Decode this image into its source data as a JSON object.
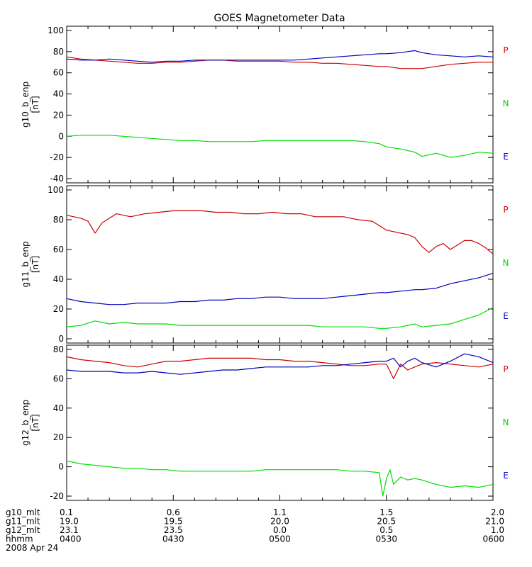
{
  "chart_data": {
    "type": "line",
    "title": "GOES Magnetometer Data",
    "x_time_labels": {
      "rows": [
        {
          "name": "g10_mlt",
          "values": [
            "0.1",
            "0.6",
            "1.1",
            "1.5",
            "2.0"
          ]
        },
        {
          "name": "g11_mlt",
          "values": [
            "19.0",
            "19.5",
            "20.0",
            "20.5",
            "21.0"
          ]
        },
        {
          "name": "g12_mlt",
          "values": [
            "23.1",
            "23.5",
            "0.0",
            "0.5",
            "1.0"
          ]
        },
        {
          "name": "hhmm",
          "values": [
            "0400",
            "0430",
            "0500",
            "0530",
            "0600"
          ]
        }
      ],
      "date": "2008 Apr 24"
    },
    "x_range_minutes": [
      0,
      120
    ],
    "legend": [
      {
        "label": "P",
        "color": "#cc0000"
      },
      {
        "label": "N",
        "color": "#00dd00"
      },
      {
        "label": "E",
        "color": "#0000bb"
      }
    ],
    "panels": [
      {
        "ylabel": "g10_b_enp",
        "unit": "[nT]",
        "ylim": [
          -40,
          100
        ],
        "yticks": [
          -40,
          -20,
          0,
          20,
          40,
          60,
          80,
          100
        ],
        "series": [
          {
            "name": "P",
            "color": "#cc0000",
            "x": [
              0,
              4,
              8,
              12,
              16,
              20,
              24,
              28,
              32,
              36,
              40,
              44,
              48,
              52,
              56,
              60,
              64,
              68,
              72,
              76,
              80,
              84,
              88,
              90,
              94,
              98,
              100,
              104,
              108,
              112,
              116,
              120
            ],
            "values": [
              75,
              73,
              72,
              71,
              70,
              69,
              69,
              70,
              70,
              71,
              72,
              72,
              71,
              71,
              71,
              71,
              70,
              70,
              69,
              69,
              68,
              67,
              66,
              66,
              64,
              64,
              64,
              66,
              68,
              69,
              70,
              70
            ]
          },
          {
            "name": "E",
            "color": "#0000bb",
            "x": [
              0,
              4,
              8,
              12,
              16,
              20,
              24,
              28,
              32,
              36,
              40,
              44,
              48,
              52,
              56,
              60,
              64,
              68,
              72,
              76,
              80,
              84,
              88,
              90,
              94,
              98,
              100,
              104,
              108,
              112,
              116,
              120
            ],
            "values": [
              73,
              72,
              72,
              73,
              72,
              71,
              70,
              71,
              71,
              72,
              72,
              72,
              72,
              72,
              72,
              72,
              72,
              73,
              74,
              75,
              76,
              77,
              78,
              78,
              79,
              81,
              79,
              77,
              76,
              75,
              76,
              75
            ]
          },
          {
            "name": "N",
            "color": "#00dd00",
            "x": [
              0,
              4,
              8,
              12,
              16,
              20,
              24,
              28,
              32,
              36,
              40,
              44,
              48,
              52,
              56,
              60,
              64,
              68,
              72,
              76,
              80,
              84,
              88,
              90,
              94,
              98,
              100,
              104,
              108,
              112,
              116,
              120
            ],
            "values": [
              0,
              1,
              1,
              1,
              0,
              -1,
              -2,
              -3,
              -4,
              -4,
              -5,
              -5,
              -5,
              -5,
              -4,
              -4,
              -4,
              -4,
              -4,
              -4,
              -4,
              -5,
              -7,
              -10,
              -12,
              -15,
              -19,
              -16,
              -20,
              -18,
              -15,
              -16
            ]
          }
        ]
      },
      {
        "ylabel": "g11_b_enp",
        "unit": "[nT]",
        "ylim": [
          0,
          100
        ],
        "yticks": [
          0,
          20,
          40,
          60,
          80,
          100
        ],
        "series": [
          {
            "name": "P",
            "color": "#cc0000",
            "x": [
              0,
              2,
              4,
              6,
              8,
              10,
              14,
              18,
              22,
              26,
              30,
              34,
              38,
              42,
              46,
              50,
              54,
              58,
              62,
              66,
              70,
              74,
              78,
              82,
              86,
              88,
              90,
              92,
              94,
              96,
              98,
              100,
              102,
              104,
              106,
              108,
              110,
              112,
              114,
              116,
              118,
              120
            ],
            "values": [
              83,
              82,
              81,
              79,
              71,
              78,
              84,
              82,
              84,
              85,
              86,
              86,
              86,
              85,
              85,
              84,
              84,
              85,
              84,
              84,
              82,
              82,
              82,
              80,
              79,
              76,
              73,
              72,
              71,
              70,
              68,
              62,
              58,
              62,
              64,
              60,
              63,
              66,
              66,
              64,
              61,
              57
            ]
          },
          {
            "name": "E",
            "color": "#0000bb",
            "x": [
              0,
              4,
              8,
              12,
              16,
              20,
              24,
              28,
              32,
              36,
              40,
              44,
              48,
              52,
              56,
              60,
              64,
              68,
              72,
              76,
              80,
              84,
              88,
              90,
              94,
              98,
              100,
              104,
              108,
              112,
              116,
              120
            ],
            "values": [
              27,
              25,
              24,
              23,
              23,
              24,
              24,
              24,
              25,
              25,
              26,
              26,
              27,
              27,
              28,
              28,
              27,
              27,
              27,
              28,
              29,
              30,
              31,
              31,
              32,
              33,
              33,
              34,
              37,
              39,
              41,
              44
            ]
          },
          {
            "name": "N",
            "color": "#00dd00",
            "x": [
              0,
              4,
              8,
              12,
              16,
              20,
              24,
              28,
              32,
              36,
              40,
              44,
              48,
              52,
              56,
              60,
              64,
              68,
              72,
              76,
              80,
              84,
              88,
              90,
              94,
              98,
              100,
              104,
              108,
              112,
              116,
              120
            ],
            "values": [
              8,
              9,
              12,
              10,
              11,
              10,
              10,
              10,
              9,
              9,
              9,
              9,
              9,
              9,
              9,
              9,
              9,
              9,
              8,
              8,
              8,
              8,
              7,
              7,
              8,
              10,
              8,
              9,
              10,
              13,
              16,
              21
            ]
          }
        ]
      },
      {
        "ylabel": "g12_b_enp",
        "unit": "[nT]",
        "ylim": [
          -20,
          80
        ],
        "yticks": [
          -20,
          0,
          20,
          40,
          60,
          80
        ],
        "series": [
          {
            "name": "P",
            "color": "#cc0000",
            "x": [
              0,
              4,
              8,
              12,
              16,
              20,
              24,
              28,
              32,
              36,
              40,
              44,
              48,
              52,
              56,
              60,
              64,
              68,
              72,
              76,
              80,
              84,
              88,
              90,
              92,
              94,
              96,
              98,
              100,
              104,
              108,
              112,
              116,
              120
            ],
            "values": [
              75,
              73,
              72,
              71,
              69,
              68,
              70,
              72,
              72,
              73,
              74,
              74,
              74,
              74,
              73,
              73,
              72,
              72,
              71,
              70,
              69,
              69,
              70,
              70,
              60,
              70,
              66,
              68,
              70,
              71,
              70,
              69,
              68,
              70
            ]
          },
          {
            "name": "E",
            "color": "#0000bb",
            "x": [
              0,
              4,
              8,
              12,
              16,
              20,
              24,
              28,
              32,
              36,
              40,
              44,
              48,
              52,
              56,
              60,
              64,
              68,
              72,
              76,
              80,
              84,
              88,
              90,
              92,
              94,
              96,
              98,
              100,
              104,
              108,
              112,
              116,
              120
            ],
            "values": [
              66,
              65,
              65,
              65,
              64,
              64,
              65,
              64,
              63,
              64,
              65,
              66,
              66,
              67,
              68,
              68,
              68,
              68,
              69,
              69,
              70,
              71,
              72,
              72,
              74,
              68,
              72,
              74,
              71,
              68,
              72,
              77,
              75,
              71
            ]
          },
          {
            "name": "N",
            "color": "#00dd00",
            "x": [
              0,
              4,
              8,
              12,
              16,
              20,
              24,
              28,
              32,
              36,
              40,
              44,
              48,
              52,
              56,
              60,
              64,
              68,
              72,
              76,
              80,
              84,
              88,
              89,
              90,
              91,
              92,
              94,
              96,
              98,
              100,
              104,
              108,
              112,
              116,
              120
            ],
            "values": [
              4,
              2,
              1,
              0,
              -1,
              -1,
              -2,
              -2,
              -3,
              -3,
              -3,
              -3,
              -3,
              -3,
              -2,
              -2,
              -2,
              -2,
              -2,
              -2,
              -3,
              -3,
              -4,
              -20,
              -8,
              -2,
              -12,
              -7,
              -9,
              -8,
              -9,
              -12,
              -14,
              -13,
              -14,
              -12
            ]
          }
        ]
      }
    ]
  }
}
